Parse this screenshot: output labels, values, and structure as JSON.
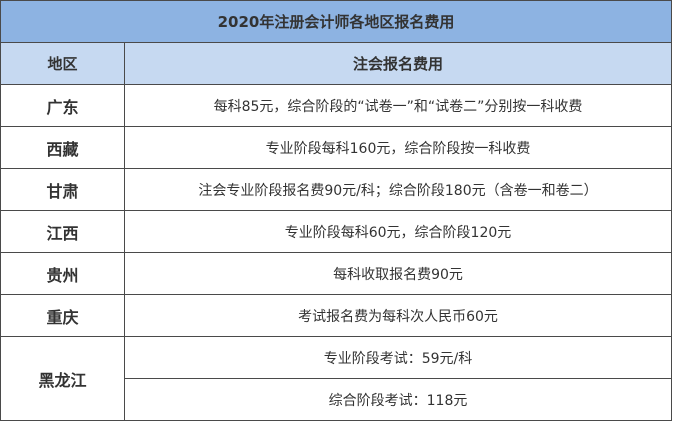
{
  "title": "2020年注册会计师各地区报名费用",
  "headers": {
    "region": "地区",
    "fee": "注会报名费用"
  },
  "colors": {
    "title_bg": "#8db3e2",
    "header_bg": "#c6d9f1"
  },
  "rows": [
    {
      "region": "广东",
      "fees": [
        "每科85元，综合阶段的“试卷一”和“试卷二”分别按一科收费"
      ]
    },
    {
      "region": "西藏",
      "fees": [
        "专业阶段每科160元，综合阶段按一科收费"
      ]
    },
    {
      "region": "甘肃",
      "fees": [
        "注会专业阶段报名费90元/科；综合阶段180元（含卷一和卷二）"
      ]
    },
    {
      "region": "江西",
      "fees": [
        "专业阶段每科60元，综合阶段120元"
      ]
    },
    {
      "region": "贵州",
      "fees": [
        "每科收取报名费90元"
      ]
    },
    {
      "region": "重庆",
      "fees": [
        "考试报名费为每科次人民币60元"
      ]
    },
    {
      "region": "黑龙江",
      "fees": [
        "专业阶段考试：59元/科",
        "综合阶段考试：118元"
      ]
    }
  ]
}
